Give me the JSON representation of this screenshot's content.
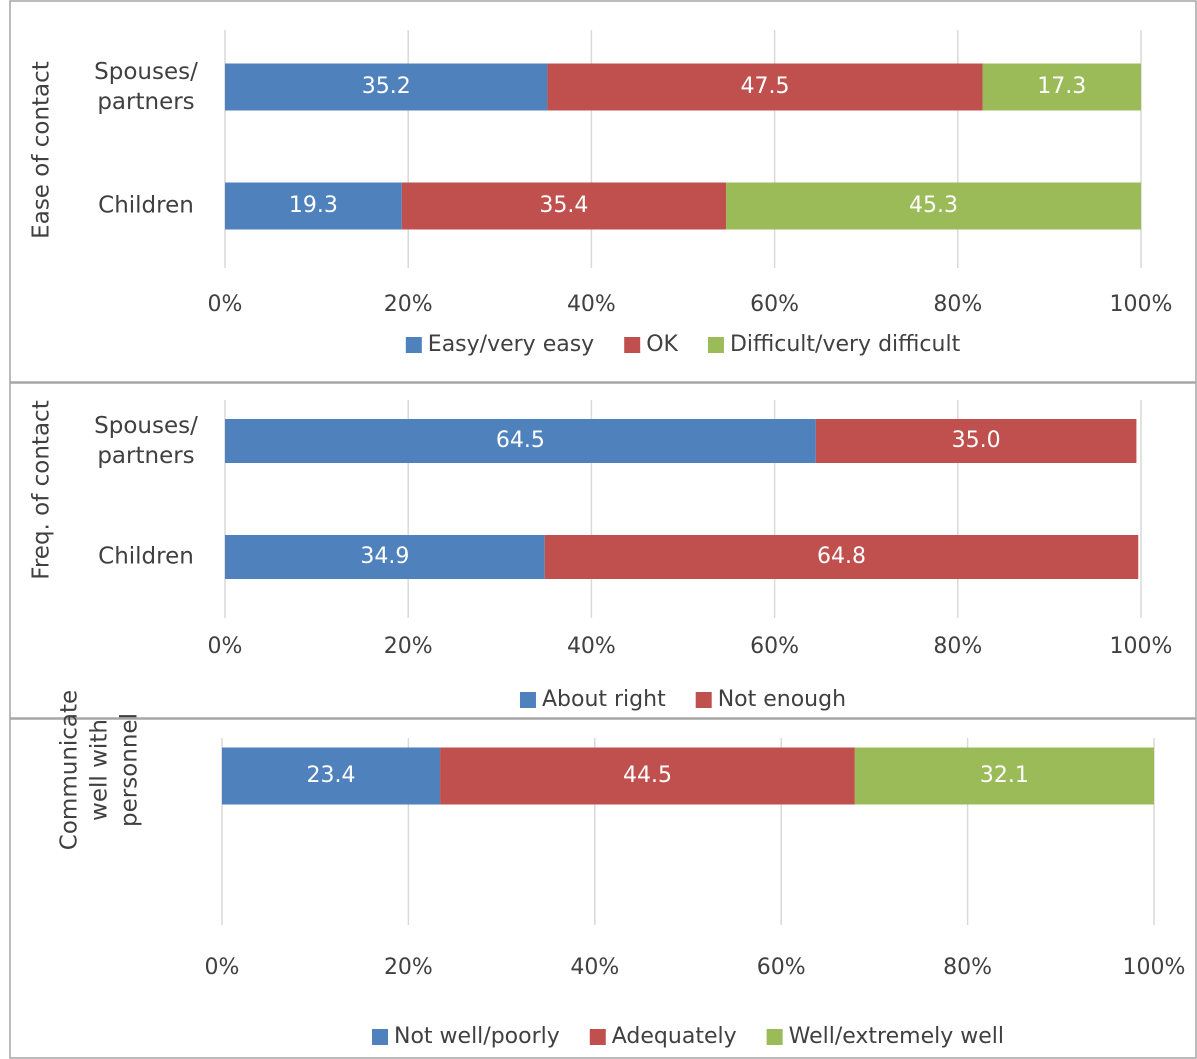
{
  "chart_data": [
    {
      "type": "stacked-barh",
      "ylabel": [
        "Ease of contact"
      ],
      "categories": [
        "Spouses/ partners",
        "Children"
      ],
      "series": [
        {
          "name": "Easy/very easy",
          "color": "#4f81bd",
          "values": [
            35.2,
            19.3
          ]
        },
        {
          "name": "OK",
          "color": "#c0504d",
          "values": [
            47.5,
            35.4
          ]
        },
        {
          "name": "Difficult/very difficult",
          "color": "#9bbb59",
          "values": [
            17.3,
            45.3
          ]
        }
      ],
      "xlim": [
        0,
        100
      ],
      "xticks": [
        {
          "value": 0,
          "label": "0%"
        },
        {
          "value": 20,
          "label": "20%"
        },
        {
          "value": 40,
          "label": "40%"
        },
        {
          "value": 60,
          "label": "60%"
        },
        {
          "value": 80,
          "label": "80%"
        },
        {
          "value": 100,
          "label": "100%"
        }
      ],
      "grid": true,
      "legend": "bottom"
    },
    {
      "type": "stacked-barh",
      "ylabel": [
        "Freq. of contact"
      ],
      "categories": [
        "Spouses/ partners",
        "Children"
      ],
      "series": [
        {
          "name": "About right",
          "color": "#4f81bd",
          "values": [
            64.5,
            34.9
          ]
        },
        {
          "name": "Not enough",
          "color": "#c0504d",
          "values": [
            35.0,
            64.8
          ],
          "value_labels": [
            "35.0",
            "64.8"
          ]
        }
      ],
      "xlim": [
        0,
        100
      ],
      "xticks": [
        {
          "value": 0,
          "label": "0%"
        },
        {
          "value": 20,
          "label": "20%"
        },
        {
          "value": 40,
          "label": "40%"
        },
        {
          "value": 60,
          "label": "60%"
        },
        {
          "value": 80,
          "label": "80%"
        },
        {
          "value": 100,
          "label": "100%"
        }
      ],
      "grid": true,
      "legend": "bottom"
    },
    {
      "type": "stacked-barh",
      "ylabel": [
        "Communicate",
        "well with",
        "personnel"
      ],
      "categories": [
        null
      ],
      "series": [
        {
          "name": "Not well/poorly",
          "color": "#4f81bd",
          "values": [
            23.4
          ]
        },
        {
          "name": "Adequately",
          "color": "#c0504d",
          "values": [
            44.5
          ]
        },
        {
          "name": "Well/extremely well",
          "color": "#9bbb59",
          "values": [
            32.1
          ]
        }
      ],
      "xlim": [
        0,
        100
      ],
      "xticks": [
        {
          "value": 0,
          "label": "0%"
        },
        {
          "value": 20,
          "label": "20%"
        },
        {
          "value": 40,
          "label": "40%"
        },
        {
          "value": 60,
          "label": "60%"
        },
        {
          "value": 80,
          "label": "80%"
        },
        {
          "value": 100,
          "label": "100%"
        }
      ],
      "grid": true,
      "legend": "bottom"
    }
  ]
}
